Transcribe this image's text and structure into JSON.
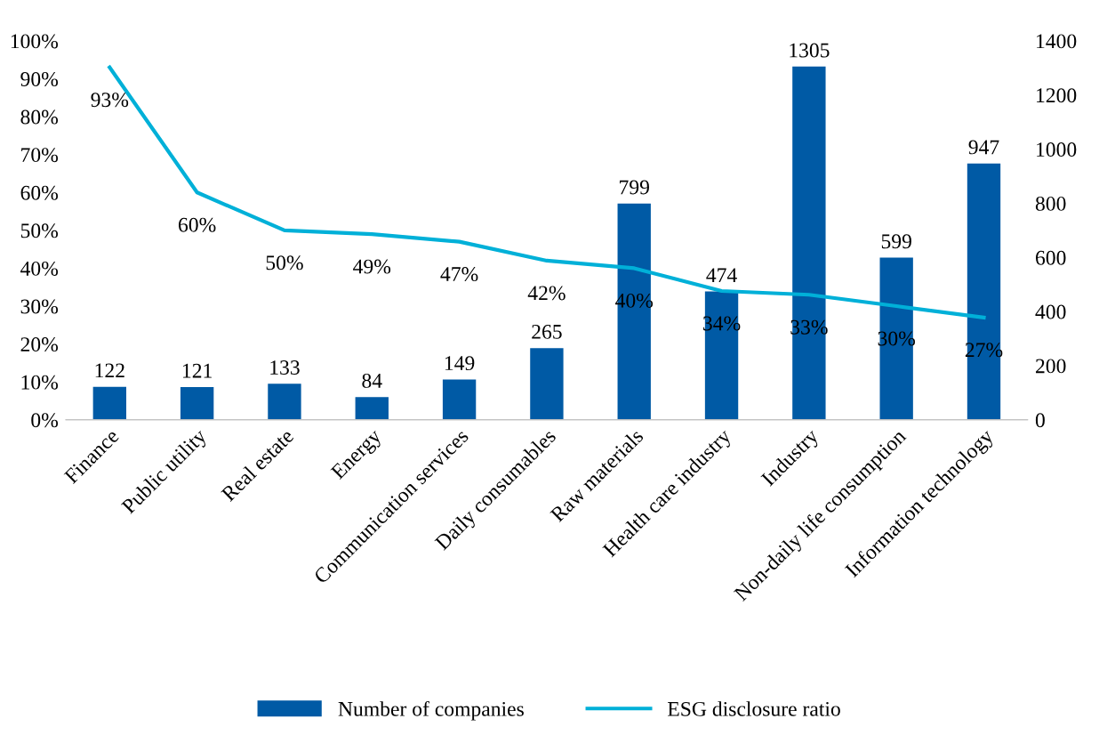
{
  "chart_data": {
    "type": "bar",
    "categories": [
      "Finance",
      "Public utility",
      "Real estate",
      "Energy",
      "Communication services",
      "Daily consumables",
      "Raw materials",
      "Health care industry",
      "Industry",
      "Non-daily life consumption",
      "Information technology"
    ],
    "series": [
      {
        "name": "Number of companies",
        "axis": "y2",
        "color": "#005aa5",
        "values": [
          122,
          121,
          133,
          84,
          149,
          265,
          799,
          474,
          1305,
          599,
          947
        ],
        "value_labels": [
          "122",
          "121",
          "133",
          "84",
          "149",
          "265",
          "799",
          "474",
          "1305",
          "599",
          "947"
        ]
      },
      {
        "name": "ESG disclosure ratio",
        "type": "line",
        "axis": "y",
        "color": "#00b0d8",
        "values": [
          93,
          60,
          50,
          49,
          47,
          42,
          40,
          34,
          33,
          30,
          27
        ],
        "value_labels": [
          "93%",
          "60%",
          "50%",
          "49%",
          "47%",
          "42%",
          "40%",
          "34%",
          "33%",
          "30%",
          "27%"
        ]
      }
    ],
    "ylim": [
      0,
      100
    ],
    "yticks": [
      {
        "value": 0,
        "label": "0%"
      },
      {
        "value": 10,
        "label": "10%"
      },
      {
        "value": 20,
        "label": "20%"
      },
      {
        "value": 30,
        "label": "30%"
      },
      {
        "value": 40,
        "label": "40%"
      },
      {
        "value": 50,
        "label": "50%"
      },
      {
        "value": 60,
        "label": "60%"
      },
      {
        "value": 70,
        "label": "70%"
      },
      {
        "value": 80,
        "label": "80%"
      },
      {
        "value": 90,
        "label": "90%"
      },
      {
        "value": 100,
        "label": "100%"
      }
    ],
    "y2lim": [
      0,
      1400
    ],
    "y2ticks": [
      0,
      200,
      400,
      600,
      800,
      1000,
      1200,
      1400
    ],
    "grid": false,
    "legend": "bottom",
    "marker": "none",
    "line_style": "solid"
  }
}
